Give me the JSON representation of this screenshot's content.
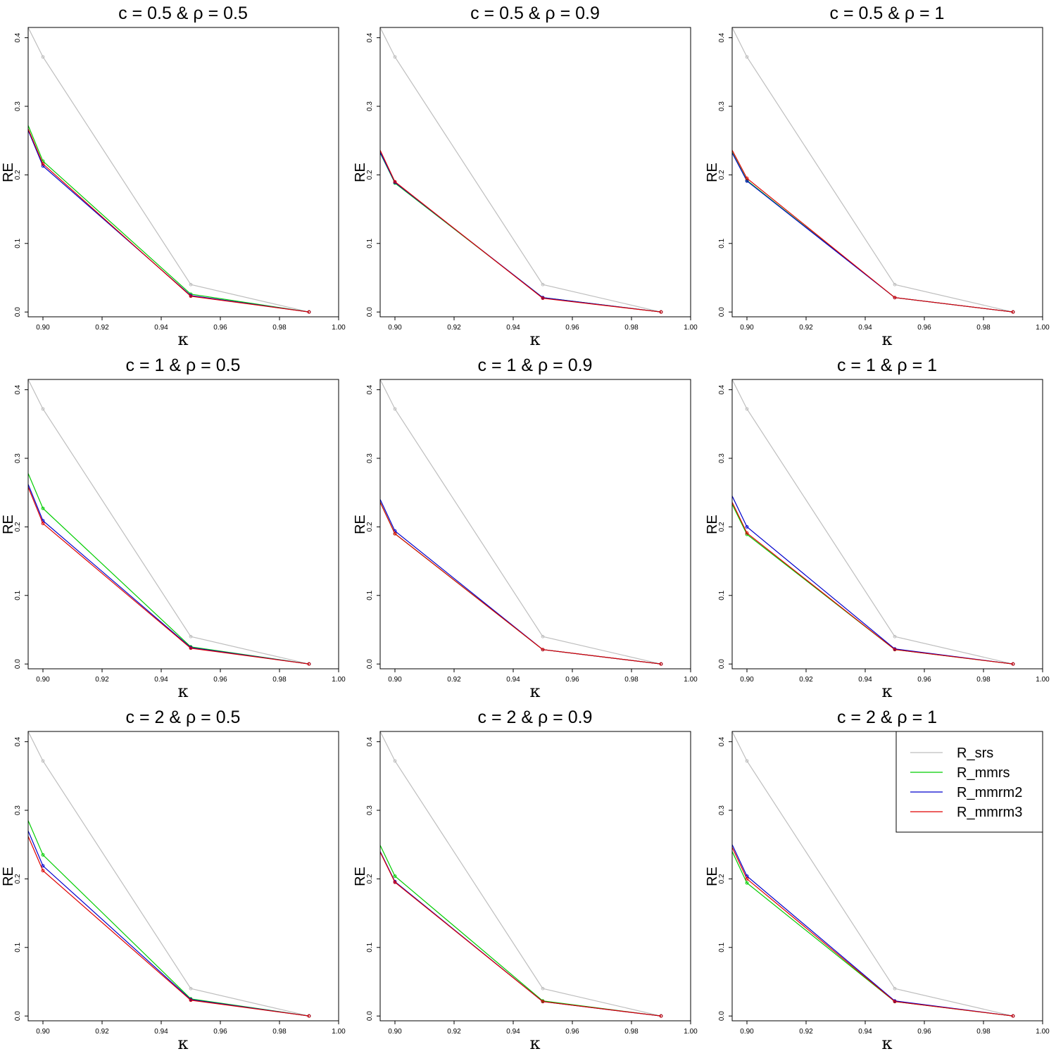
{
  "figure": {
    "legend": {
      "placement": "top-right",
      "panel": 8,
      "entries": [
        {
          "label": "R_srs",
          "color": "#bebebe"
        },
        {
          "label": "R_mmrs",
          "color": "#00cd00"
        },
        {
          "label": "R_mmrm2",
          "color": "#0000cd"
        },
        {
          "label": "R_mmrm3",
          "color": "#e00000"
        }
      ]
    }
  },
  "chart_data": [
    {
      "type": "line",
      "title": "c = 0.5 & ρ = 0.5",
      "xlabel": "κ",
      "ylabel": "RE",
      "xlim": [
        0.895,
        1.0
      ],
      "ylim": [
        -0.007,
        0.415
      ],
      "xticks": [
        "0.90",
        "0.92",
        "0.94",
        "0.96",
        "0.98",
        "1.00"
      ],
      "yticks": [
        "0.0",
        "0.1",
        "0.2",
        "0.3",
        "0.4"
      ],
      "series": [
        {
          "name": "R_srs",
          "color": "#bebebe",
          "points": [
            [
              0.895,
              0.415
            ],
            [
              0.9,
              0.372
            ],
            [
              0.95,
              0.04
            ],
            [
              0.99,
              0.0
            ]
          ]
        },
        {
          "name": "R_mmrs",
          "color": "#00cd00",
          "points": [
            [
              0.895,
              0.272
            ],
            [
              0.9,
              0.22
            ],
            [
              0.95,
              0.026
            ],
            [
              0.99,
              0.0
            ]
          ]
        },
        {
          "name": "R_mmrm2",
          "color": "#0000cd",
          "points": [
            [
              0.895,
              0.265
            ],
            [
              0.9,
              0.213
            ],
            [
              0.95,
              0.024
            ],
            [
              0.99,
              0.0
            ]
          ]
        },
        {
          "name": "R_mmrm3",
          "color": "#e00000",
          "points": [
            [
              0.895,
              0.267
            ],
            [
              0.9,
              0.216
            ],
            [
              0.95,
              0.023
            ],
            [
              0.99,
              0.0
            ]
          ]
        }
      ]
    },
    {
      "type": "line",
      "title": "c = 0.5 & ρ = 0.9",
      "xlabel": "κ",
      "ylabel": "RE",
      "xlim": [
        0.895,
        1.0
      ],
      "ylim": [
        -0.007,
        0.415
      ],
      "xticks": [
        "0.90",
        "0.92",
        "0.94",
        "0.96",
        "0.98",
        "1.00"
      ],
      "yticks": [
        "0.0",
        "0.1",
        "0.2",
        "0.3",
        "0.4"
      ],
      "series": [
        {
          "name": "R_srs",
          "color": "#bebebe",
          "points": [
            [
              0.895,
              0.415
            ],
            [
              0.9,
              0.372
            ],
            [
              0.95,
              0.04
            ],
            [
              0.99,
              0.0
            ]
          ]
        },
        {
          "name": "R_mmrs",
          "color": "#00cd00",
          "points": [
            [
              0.895,
              0.232
            ],
            [
              0.9,
              0.188
            ],
            [
              0.95,
              0.021
            ],
            [
              0.99,
              0.0
            ]
          ]
        },
        {
          "name": "R_mmrm2",
          "color": "#0000cd",
          "points": [
            [
              0.895,
              0.233
            ],
            [
              0.9,
              0.189
            ],
            [
              0.95,
              0.021
            ],
            [
              0.99,
              0.0
            ]
          ]
        },
        {
          "name": "R_mmrm3",
          "color": "#e00000",
          "points": [
            [
              0.895,
              0.236
            ],
            [
              0.9,
              0.19
            ],
            [
              0.95,
              0.02
            ],
            [
              0.99,
              0.0
            ]
          ]
        }
      ]
    },
    {
      "type": "line",
      "title": "c = 0.5 & ρ = 1",
      "xlabel": "κ",
      "ylabel": "RE",
      "xlim": [
        0.895,
        1.0
      ],
      "ylim": [
        -0.007,
        0.415
      ],
      "xticks": [
        "0.90",
        "0.92",
        "0.94",
        "0.96",
        "0.98",
        "1.00"
      ],
      "yticks": [
        "0.0",
        "0.1",
        "0.2",
        "0.3",
        "0.4"
      ],
      "series": [
        {
          "name": "R_srs",
          "color": "#bebebe",
          "points": [
            [
              0.895,
              0.415
            ],
            [
              0.9,
              0.372
            ],
            [
              0.95,
              0.04
            ],
            [
              0.99,
              0.0
            ]
          ]
        },
        {
          "name": "R_mmrs",
          "color": "#00cd00",
          "points": [
            [
              0.895,
              0.233
            ],
            [
              0.9,
              0.192
            ],
            [
              0.95,
              0.021
            ],
            [
              0.99,
              0.0
            ]
          ]
        },
        {
          "name": "R_mmrm2",
          "color": "#0000cd",
          "points": [
            [
              0.895,
              0.232
            ],
            [
              0.9,
              0.191
            ],
            [
              0.95,
              0.021
            ],
            [
              0.99,
              0.0
            ]
          ]
        },
        {
          "name": "R_mmrm3",
          "color": "#e00000",
          "points": [
            [
              0.895,
              0.236
            ],
            [
              0.9,
              0.195
            ],
            [
              0.95,
              0.021
            ],
            [
              0.99,
              0.0
            ]
          ]
        }
      ]
    },
    {
      "type": "line",
      "title": "c = 1 & ρ = 0.5",
      "xlabel": "κ",
      "ylabel": "RE",
      "xlim": [
        0.895,
        1.0
      ],
      "ylim": [
        -0.007,
        0.415
      ],
      "xticks": [
        "0.90",
        "0.92",
        "0.94",
        "0.96",
        "0.98",
        "1.00"
      ],
      "yticks": [
        "0.0",
        "0.1",
        "0.2",
        "0.3",
        "0.4"
      ],
      "series": [
        {
          "name": "R_srs",
          "color": "#bebebe",
          "points": [
            [
              0.895,
              0.415
            ],
            [
              0.9,
              0.372
            ],
            [
              0.95,
              0.04
            ],
            [
              0.99,
              0.0
            ]
          ]
        },
        {
          "name": "R_mmrs",
          "color": "#00cd00",
          "points": [
            [
              0.895,
              0.278
            ],
            [
              0.9,
              0.227
            ],
            [
              0.95,
              0.025
            ],
            [
              0.99,
              0.0
            ]
          ]
        },
        {
          "name": "R_mmrm2",
          "color": "#0000cd",
          "points": [
            [
              0.895,
              0.262
            ],
            [
              0.9,
              0.209
            ],
            [
              0.95,
              0.024
            ],
            [
              0.99,
              0.0
            ]
          ]
        },
        {
          "name": "R_mmrm3",
          "color": "#e00000",
          "points": [
            [
              0.895,
              0.258
            ],
            [
              0.9,
              0.205
            ],
            [
              0.95,
              0.023
            ],
            [
              0.99,
              0.0
            ]
          ]
        }
      ]
    },
    {
      "type": "line",
      "title": "c = 1 & ρ = 0.9",
      "xlabel": "κ",
      "ylabel": "RE",
      "xlim": [
        0.895,
        1.0
      ],
      "ylim": [
        -0.007,
        0.415
      ],
      "xticks": [
        "0.90",
        "0.92",
        "0.94",
        "0.96",
        "0.98",
        "1.00"
      ],
      "yticks": [
        "0.0",
        "0.1",
        "0.2",
        "0.3",
        "0.4"
      ],
      "series": [
        {
          "name": "R_srs",
          "color": "#bebebe",
          "points": [
            [
              0.895,
              0.415
            ],
            [
              0.9,
              0.372
            ],
            [
              0.95,
              0.04
            ],
            [
              0.99,
              0.0
            ]
          ]
        },
        {
          "name": "R_mmrs",
          "color": "#00cd00",
          "points": [
            [
              0.895,
              0.236
            ],
            [
              0.9,
              0.19
            ],
            [
              0.95,
              0.021
            ],
            [
              0.99,
              0.0
            ]
          ]
        },
        {
          "name": "R_mmrm2",
          "color": "#0000cd",
          "points": [
            [
              0.895,
              0.24
            ],
            [
              0.9,
              0.194
            ],
            [
              0.95,
              0.021
            ],
            [
              0.99,
              0.0
            ]
          ]
        },
        {
          "name": "R_mmrm3",
          "color": "#e00000",
          "points": [
            [
              0.895,
              0.236
            ],
            [
              0.9,
              0.19
            ],
            [
              0.95,
              0.021
            ],
            [
              0.99,
              0.0
            ]
          ]
        }
      ]
    },
    {
      "type": "line",
      "title": "c = 1 & ρ = 1",
      "xlabel": "κ",
      "ylabel": "RE",
      "xlim": [
        0.895,
        1.0
      ],
      "ylim": [
        -0.007,
        0.415
      ],
      "xticks": [
        "0.90",
        "0.92",
        "0.94",
        "0.96",
        "0.98",
        "1.00"
      ],
      "yticks": [
        "0.0",
        "0.1",
        "0.2",
        "0.3",
        "0.4"
      ],
      "series": [
        {
          "name": "R_srs",
          "color": "#bebebe",
          "points": [
            [
              0.895,
              0.415
            ],
            [
              0.9,
              0.372
            ],
            [
              0.95,
              0.04
            ],
            [
              0.99,
              0.0
            ]
          ]
        },
        {
          "name": "R_mmrs",
          "color": "#00cd00",
          "points": [
            [
              0.895,
              0.233
            ],
            [
              0.9,
              0.189
            ],
            [
              0.95,
              0.021
            ],
            [
              0.99,
              0.0
            ]
          ]
        },
        {
          "name": "R_mmrm2",
          "color": "#0000cd",
          "points": [
            [
              0.895,
              0.245
            ],
            [
              0.9,
              0.2
            ],
            [
              0.95,
              0.022
            ],
            [
              0.99,
              0.0
            ]
          ]
        },
        {
          "name": "R_mmrm3",
          "color": "#e00000",
          "points": [
            [
              0.895,
              0.236
            ],
            [
              0.9,
              0.191
            ],
            [
              0.95,
              0.021
            ],
            [
              0.99,
              0.0
            ]
          ]
        }
      ]
    },
    {
      "type": "line",
      "title": "c = 2 & ρ = 0.5",
      "xlabel": "κ",
      "ylabel": "RE",
      "xlim": [
        0.895,
        1.0
      ],
      "ylim": [
        -0.007,
        0.415
      ],
      "xticks": [
        "0.90",
        "0.92",
        "0.94",
        "0.96",
        "0.98",
        "1.00"
      ],
      "yticks": [
        "0.0",
        "0.1",
        "0.2",
        "0.3",
        "0.4"
      ],
      "series": [
        {
          "name": "R_srs",
          "color": "#bebebe",
          "points": [
            [
              0.895,
              0.415
            ],
            [
              0.9,
              0.372
            ],
            [
              0.95,
              0.04
            ],
            [
              0.99,
              0.0
            ]
          ]
        },
        {
          "name": "R_mmrs",
          "color": "#00cd00",
          "points": [
            [
              0.895,
              0.285
            ],
            [
              0.9,
              0.235
            ],
            [
              0.95,
              0.025
            ],
            [
              0.99,
              0.0
            ]
          ]
        },
        {
          "name": "R_mmrm2",
          "color": "#0000cd",
          "points": [
            [
              0.895,
              0.27
            ],
            [
              0.9,
              0.219
            ],
            [
              0.95,
              0.024
            ],
            [
              0.99,
              0.0
            ]
          ]
        },
        {
          "name": "R_mmrm3",
          "color": "#e00000",
          "points": [
            [
              0.895,
              0.262
            ],
            [
              0.9,
              0.212
            ],
            [
              0.95,
              0.023
            ],
            [
              0.99,
              0.0
            ]
          ]
        }
      ]
    },
    {
      "type": "line",
      "title": "c = 2 & ρ = 0.9",
      "xlabel": "κ",
      "ylabel": "RE",
      "xlim": [
        0.895,
        1.0
      ],
      "ylim": [
        -0.007,
        0.415
      ],
      "xticks": [
        "0.90",
        "0.92",
        "0.94",
        "0.96",
        "0.98",
        "1.00"
      ],
      "yticks": [
        "0.0",
        "0.1",
        "0.2",
        "0.3",
        "0.4"
      ],
      "series": [
        {
          "name": "R_srs",
          "color": "#bebebe",
          "points": [
            [
              0.895,
              0.415
            ],
            [
              0.9,
              0.372
            ],
            [
              0.95,
              0.04
            ],
            [
              0.99,
              0.0
            ]
          ]
        },
        {
          "name": "R_mmrs",
          "color": "#00cd00",
          "points": [
            [
              0.895,
              0.249
            ],
            [
              0.9,
              0.204
            ],
            [
              0.95,
              0.022
            ],
            [
              0.99,
              0.0
            ]
          ]
        },
        {
          "name": "R_mmrm2",
          "color": "#0000cd",
          "points": [
            [
              0.895,
              0.24
            ],
            [
              0.9,
              0.196
            ],
            [
              0.95,
              0.021
            ],
            [
              0.99,
              0.0
            ]
          ]
        },
        {
          "name": "R_mmrm3",
          "color": "#e00000",
          "points": [
            [
              0.895,
              0.239
            ],
            [
              0.9,
              0.195
            ],
            [
              0.95,
              0.021
            ],
            [
              0.99,
              0.0
            ]
          ]
        }
      ]
    },
    {
      "type": "line",
      "title": "c = 2 & ρ = 1",
      "xlabel": "κ",
      "ylabel": "RE",
      "xlim": [
        0.895,
        1.0
      ],
      "ylim": [
        -0.007,
        0.415
      ],
      "xticks": [
        "0.90",
        "0.92",
        "0.94",
        "0.96",
        "0.98",
        "1.00"
      ],
      "yticks": [
        "0.0",
        "0.1",
        "0.2",
        "0.3",
        "0.4"
      ],
      "series": [
        {
          "name": "R_srs",
          "color": "#bebebe",
          "points": [
            [
              0.895,
              0.415
            ],
            [
              0.9,
              0.372
            ],
            [
              0.95,
              0.04
            ],
            [
              0.99,
              0.0
            ]
          ]
        },
        {
          "name": "R_mmrs",
          "color": "#00cd00",
          "points": [
            [
              0.895,
              0.24
            ],
            [
              0.9,
              0.194
            ],
            [
              0.95,
              0.021
            ],
            [
              0.99,
              0.0
            ]
          ]
        },
        {
          "name": "R_mmrm2",
          "color": "#0000cd",
          "points": [
            [
              0.895,
              0.25
            ],
            [
              0.9,
              0.204
            ],
            [
              0.95,
              0.022
            ],
            [
              0.99,
              0.0
            ]
          ]
        },
        {
          "name": "R_mmrm3",
          "color": "#e00000",
          "points": [
            [
              0.895,
              0.246
            ],
            [
              0.9,
              0.2
            ],
            [
              0.95,
              0.021
            ],
            [
              0.99,
              0.0
            ]
          ]
        }
      ]
    }
  ]
}
